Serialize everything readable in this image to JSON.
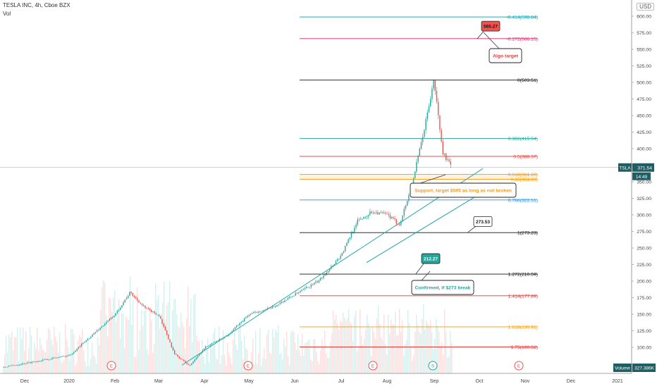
{
  "header": {
    "symbol_line": "TESLA INC, 4h, Cboe BZX",
    "sub_line": "Vol",
    "currency": "USD"
  },
  "colors": {
    "up": "#26a69a",
    "down": "#ef5350",
    "trend": "#26a6a6",
    "fib_black": "#111111",
    "fib_teal": "#26a69a",
    "fib_red": "#e53935",
    "fib_orange": "#ff9800",
    "fib_blue": "#2196f3",
    "fib_pink": "#e91e63",
    "fib_cyan": "#00a3b4",
    "label_red": "#ef5350",
    "label_green": "#26a69a"
  },
  "chart_data": {
    "type": "candlestick",
    "title": "TESLA INC, 4h, Cboe BZX",
    "ylabel": "USD",
    "ylim": [
      50,
      625
    ],
    "y_ticks": [
      100,
      125,
      150,
      175,
      200,
      225,
      250,
      275,
      300,
      325,
      350,
      375,
      400,
      425,
      450,
      475,
      500,
      525,
      550,
      575,
      600
    ],
    "x_ticks": [
      "Dec",
      "2020",
      "Feb",
      "Mar",
      "Apr",
      "May",
      "Jun",
      "Jul",
      "Aug",
      "Sep",
      "Oct",
      "Nov",
      "Dec",
      "2021"
    ],
    "grid": false,
    "price_path": [
      [
        "Dec",
        70
      ],
      [
        "2020",
        88
      ],
      [
        "Feb",
        150
      ],
      [
        "Feb",
        183
      ],
      [
        "Feb",
        160
      ],
      [
        "Mar",
        148
      ],
      [
        "Mar",
        90
      ],
      [
        "Mar",
        72
      ],
      [
        "Apr",
        100
      ],
      [
        "Apr",
        118
      ],
      [
        "May",
        150
      ],
      [
        "May",
        160
      ],
      [
        "Jun",
        180
      ],
      [
        "Jun",
        200
      ],
      [
        "Jul",
        240
      ],
      [
        "Jul",
        290
      ],
      [
        "Jul",
        305
      ],
      [
        "Aug",
        300
      ],
      [
        "Aug",
        285
      ],
      [
        "Aug",
        340
      ],
      [
        "Aug",
        420
      ],
      [
        "Sep",
        503.5
      ],
      [
        "Sep",
        395
      ],
      [
        "Sep",
        371.54
      ]
    ],
    "last_price": {
      "symbol": "TSLA",
      "value": "371.54",
      "countdown": "14:49"
    },
    "volume_label": "Volume",
    "volume_value": "327.386K",
    "fib_levels": [
      {
        "ratio": "-0.414",
        "value": "598.84",
        "color": "#00a3b4"
      },
      {
        "ratio": "-0.272",
        "value": "566.15",
        "color": "#e91e63"
      },
      {
        "ratio": "0",
        "value": "503.51",
        "color": "#111111"
      },
      {
        "ratio": "0.382",
        "value": "415.54",
        "color": "#26a69a"
      },
      {
        "ratio": "0.5",
        "value": "388.37",
        "color": "#e53935"
      },
      {
        "ratio": "0.618",
        "value": "361.20",
        "color": "#ff9800"
      },
      {
        "ratio": "0.65",
        "value": "353.83",
        "color": "#ff9800"
      },
      {
        "ratio": "0.786",
        "value": "322.51",
        "color": "#2196f3"
      },
      {
        "ratio": "1",
        "value": "273.23",
        "color": "#111111"
      },
      {
        "ratio": "1.272",
        "value": "210.59",
        "color": "#111111"
      },
      {
        "ratio": "1.414",
        "value": "177.89",
        "color": "#e53935"
      },
      {
        "ratio": "1.618",
        "value": "130.91",
        "color": "#ff9800"
      },
      {
        "ratio": "1.75",
        "value": "100.52",
        "color": "#e53935"
      }
    ],
    "price_labels": [
      {
        "text": "565.27",
        "price": 585,
        "style": "red"
      },
      {
        "text": "273.53",
        "price": 290,
        "style": "white"
      },
      {
        "text": "212.27",
        "price": 234,
        "style": "green"
      }
    ],
    "annotations": [
      {
        "text": "Algo target",
        "color": "#e53935"
      },
      {
        "text": "Support, target $565 as long as not broken",
        "color": "#ff9800"
      },
      {
        "text": "Confirmed, if $273 break",
        "color": "#26a69a"
      }
    ],
    "event_markers": [
      {
        "label": "E",
        "month": "Feb",
        "color": "#ef5350"
      },
      {
        "label": "E",
        "month": "May",
        "color": "#ef5350"
      },
      {
        "label": "E",
        "month": "Aug",
        "color": "#ef5350"
      },
      {
        "label": "S",
        "month": "Sep",
        "color": "#26a69a"
      },
      {
        "label": "E",
        "month": "Nov",
        "color": "#ef5350"
      }
    ]
  }
}
